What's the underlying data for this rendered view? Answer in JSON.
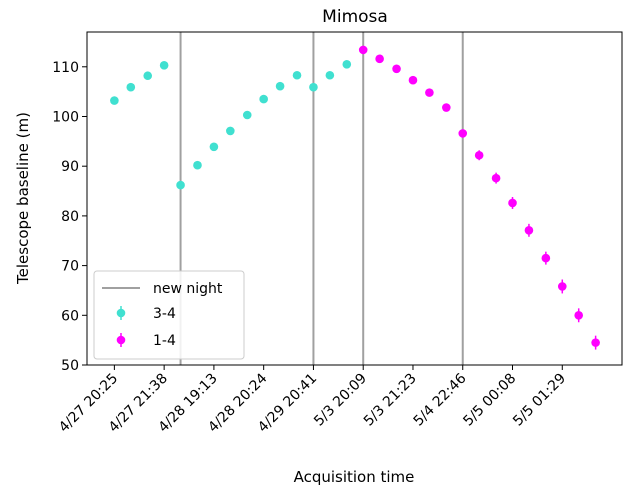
{
  "chart_data": {
    "type": "scatter",
    "title": "Mimosa",
    "xlabel": "Acquisition time",
    "ylabel": "Telescope baseline (m)",
    "ylim": [
      50,
      117
    ],
    "yticks": [
      50,
      60,
      70,
      80,
      90,
      100,
      110
    ],
    "xlim": [
      -0.55,
      10.2
    ],
    "x_tick_labels": [
      "4/27 20:25",
      "4/27 21:38",
      "4/28 19:13",
      "4/28 20:24",
      "4/29 20:41",
      "5/3 20:09",
      "5/3 21:23",
      "5/4 22:46",
      "5/5 00:08",
      "5/5 01:29"
    ],
    "x_ticks": [
      0,
      1,
      2,
      3,
      4,
      5,
      6,
      7,
      8,
      9
    ],
    "grid": false,
    "legend_position": "lower-left",
    "new_night_label": "new night",
    "new_night_color": "#a0a0a0",
    "new_night_x": [
      1.33,
      4.0,
      5.0,
      7.0
    ],
    "series": [
      {
        "name": "3-4",
        "color": "#40e0d0",
        "x": [
          0.0,
          0.33,
          0.67,
          1.0,
          1.33,
          1.67,
          2.0,
          2.33,
          2.67,
          3.0,
          3.33,
          3.67,
          4.0,
          4.33,
          4.67
        ],
        "y": [
          103.2,
          105.9,
          108.2,
          110.3,
          86.2,
          90.2,
          93.9,
          97.1,
          100.3,
          103.5,
          106.1,
          108.3,
          105.9,
          108.3,
          110.5
        ],
        "err": [
          0.4,
          0.4,
          0.4,
          0.4,
          0.6,
          0.6,
          0.5,
          0.5,
          0.5,
          0.5,
          0.4,
          0.4,
          0.4,
          0.4,
          0.4
        ]
      },
      {
        "name": "1-4",
        "color": "#ff00ff",
        "x": [
          5.0,
          5.33,
          5.67,
          6.0,
          6.33,
          6.67,
          7.0,
          7.33,
          7.67,
          8.0,
          8.33,
          8.67,
          9.0,
          9.33,
          9.67
        ],
        "y": [
          113.4,
          111.6,
          109.6,
          107.3,
          104.8,
          101.8,
          96.6,
          92.2,
          87.6,
          82.6,
          77.1,
          71.5,
          65.8,
          60.0,
          54.5
        ],
        "err": [
          0.5,
          0.5,
          0.5,
          0.5,
          0.5,
          0.6,
          0.8,
          1.0,
          1.1,
          1.2,
          1.3,
          1.3,
          1.4,
          1.4,
          1.4
        ]
      }
    ]
  }
}
